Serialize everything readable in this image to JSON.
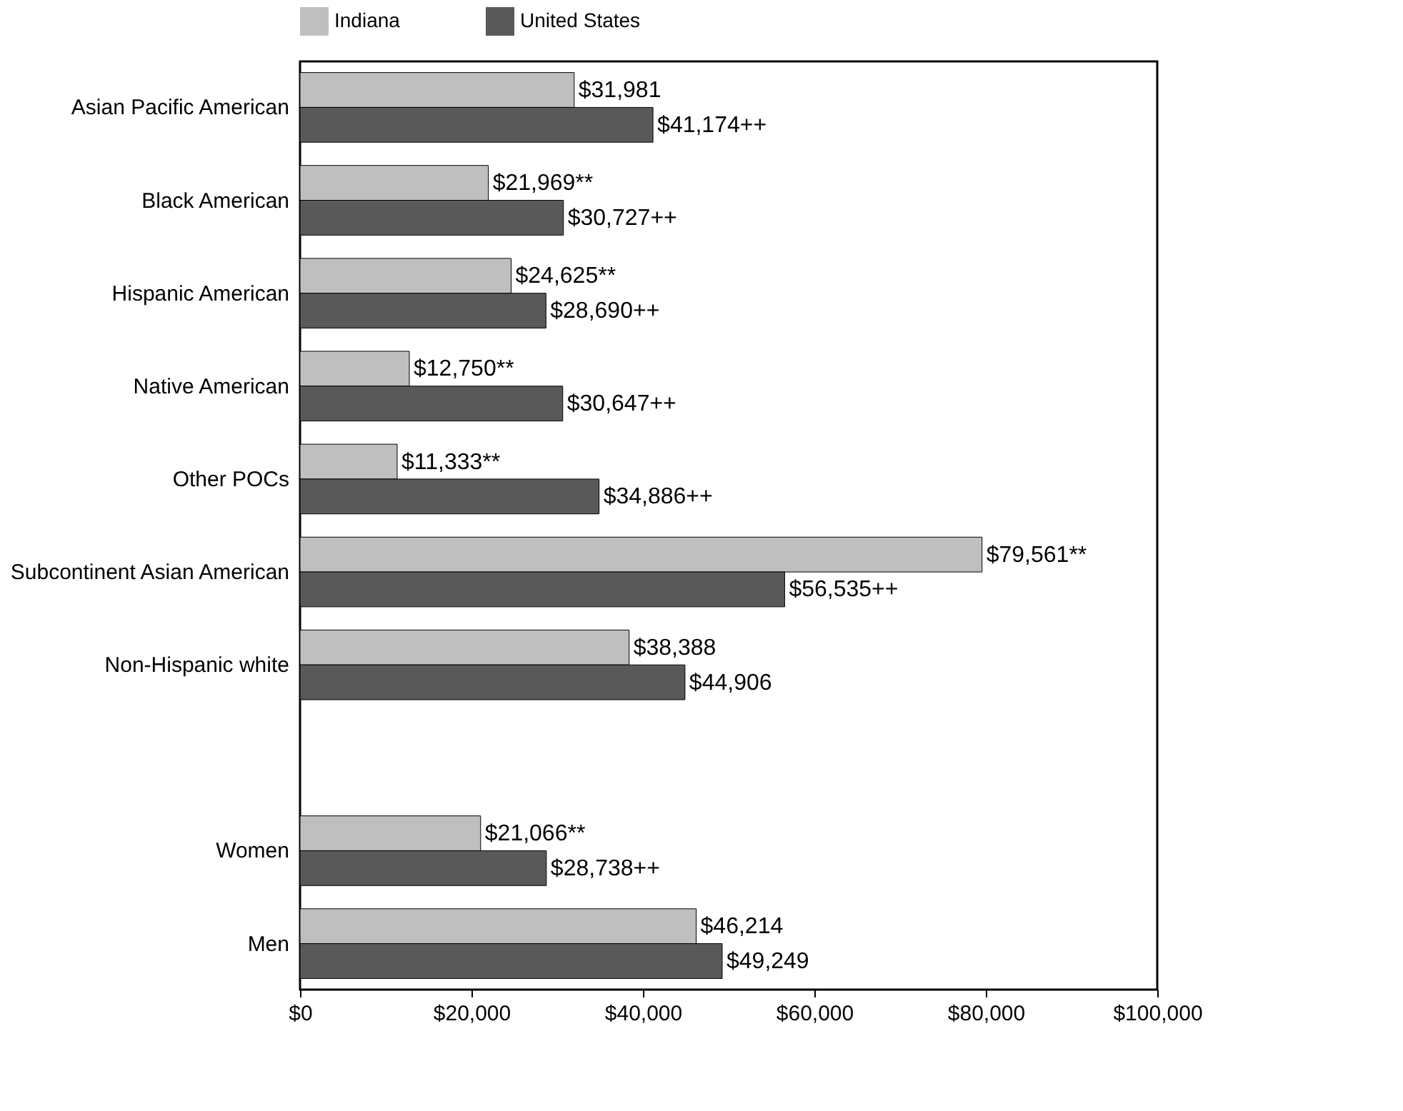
{
  "chart_data": {
    "type": "bar",
    "orientation": "horizontal",
    "categories": [
      "Asian Pacific American",
      "Black American",
      "Hispanic American",
      "Native American",
      "Other POCs",
      "Subcontinent Asian American",
      "Non-Hispanic white",
      null,
      "Women",
      "Men"
    ],
    "series": [
      {
        "name": "Indiana",
        "color": "#bfbfbf",
        "values": [
          31981,
          21969,
          24625,
          12750,
          11333,
          79561,
          38388,
          null,
          21066,
          46214
        ],
        "value_labels": [
          "$31,981",
          "$21,969**",
          "$24,625**",
          "$12,750**",
          "$11,333**",
          "$79,561**",
          "$38,388",
          null,
          "$21,066**",
          "$46,214"
        ]
      },
      {
        "name": "United States",
        "color": "#595959",
        "values": [
          41174,
          30727,
          28690,
          30647,
          34886,
          56535,
          44906,
          null,
          28738,
          49249
        ],
        "value_labels": [
          "$41,174++",
          "$30,727++",
          "$28,690++",
          "$30,647++",
          "$34,886++",
          "$56,535++",
          "$44,906",
          null,
          "$28,738++",
          "$49,249"
        ]
      }
    ],
    "xlim": [
      0,
      100000
    ],
    "xticks": [
      {
        "value": 0,
        "label": "$0"
      },
      {
        "value": 20000,
        "label": "$20,000"
      },
      {
        "value": 40000,
        "label": "$40,000"
      },
      {
        "value": 60000,
        "label": "$60,000"
      },
      {
        "value": 80000,
        "label": "$80,000"
      },
      {
        "value": 100000,
        "label": "$100,000"
      }
    ],
    "grid": false,
    "legend": "top"
  }
}
